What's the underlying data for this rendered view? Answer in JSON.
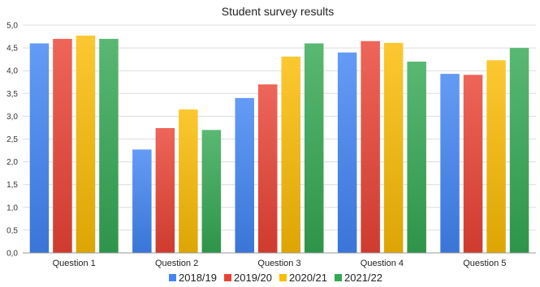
{
  "chart_data": {
    "type": "bar",
    "title": "Student survey results",
    "xlabel": "",
    "ylabel": "",
    "ylim": [
      0,
      5
    ],
    "y_ticks": [
      "0,0",
      "0,5",
      "1,0",
      "1,5",
      "2,0",
      "2,5",
      "3,0",
      "3,5",
      "4,0",
      "4,5",
      "5,0"
    ],
    "categories": [
      "Question 1",
      "Question 2",
      "Question 3",
      "Question 4",
      "Question 5"
    ],
    "series": [
      {
        "name": "2018/19",
        "color": "#4285f4",
        "values": [
          4.6,
          2.27,
          3.4,
          4.4,
          3.93
        ]
      },
      {
        "name": "2019/20",
        "color": "#ea4335",
        "values": [
          4.7,
          2.74,
          3.7,
          4.65,
          3.91
        ]
      },
      {
        "name": "2020/21",
        "color": "#fbbc04",
        "values": [
          4.77,
          3.15,
          4.31,
          4.61,
          4.23
        ]
      },
      {
        "name": "2021/22",
        "color": "#34a853",
        "values": [
          4.7,
          2.7,
          4.6,
          4.2,
          4.5
        ]
      }
    ],
    "grid": true,
    "legend_position": "bottom"
  }
}
